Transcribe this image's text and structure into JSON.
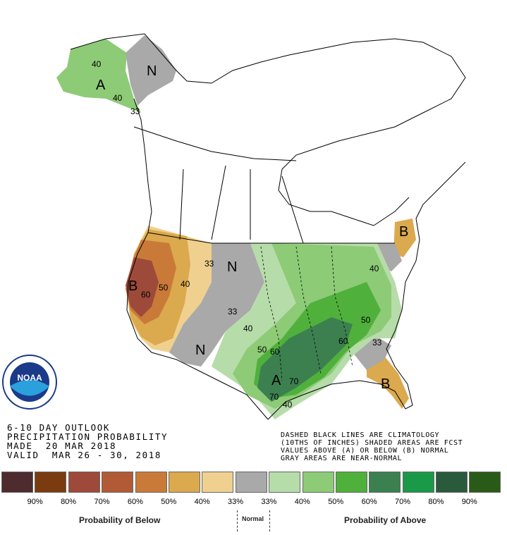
{
  "title": {
    "line1": "6-10 DAY OUTLOOK",
    "line2": "PRECIPITATION PROBABILITY",
    "line3": "MADE  20 MAR 2018",
    "line4": "VALID  MAR 26 - 30, 2018"
  },
  "notes": {
    "line1": "DASHED BLACK LINES ARE CLIMATOLOGY",
    "line2": "(10THS OF INCHES) SHADED AREAS ARE FCST",
    "line3": "VALUES ABOVE (A) OR BELOW (B) NORMAL",
    "line4": "GRAY AREAS ARE NEAR-NORMAL"
  },
  "logo": {
    "text": "NOAA",
    "ring_text": "NATIONAL OCEANIC AND ATMOSPHERIC ADMINISTRATION U.S. DEPARTMENT OF COMMERCE"
  },
  "legend": {
    "colors": [
      "#4e2b2e",
      "#7a3b10",
      "#9e4a3a",
      "#b25a35",
      "#c97a38",
      "#dba94e",
      "#f0d08e",
      "#a9a9a9",
      "#b6dcaa",
      "#8dcb77",
      "#50b03c",
      "#3c8050",
      "#1a9a48",
      "#2a5a3c",
      "#2a5a18"
    ],
    "ticks": [
      "90%",
      "80%",
      "70%",
      "60%",
      "50%",
      "40%",
      "33%",
      "33%",
      "40%",
      "50%",
      "60%",
      "70%",
      "80%",
      "90%"
    ],
    "below_label": "Probability of Below",
    "normal_label": "Normal",
    "above_label": "Probability of Above"
  },
  "map_labels": {
    "alaska_a": "A",
    "alaska_40": "40",
    "alaska_40b": "40",
    "alaska_33": "33",
    "yukon_n": "N",
    "west_b": "B",
    "west_60": "60",
    "west_50": "50",
    "west_40": "40",
    "west_33": "33",
    "plains_33": "33",
    "plains_n": "N",
    "central_33": "33",
    "central_40": "40",
    "sw_n": "N",
    "south_50": "50",
    "south_60": "60",
    "south_a": "A",
    "texas_70": "70",
    "se_60": "60",
    "se_50": "50",
    "se_33": "33",
    "ne_40": "40",
    "ne_b": "B",
    "fl_b": "B",
    "gulf_70": "70",
    "gulf_40": "40"
  }
}
